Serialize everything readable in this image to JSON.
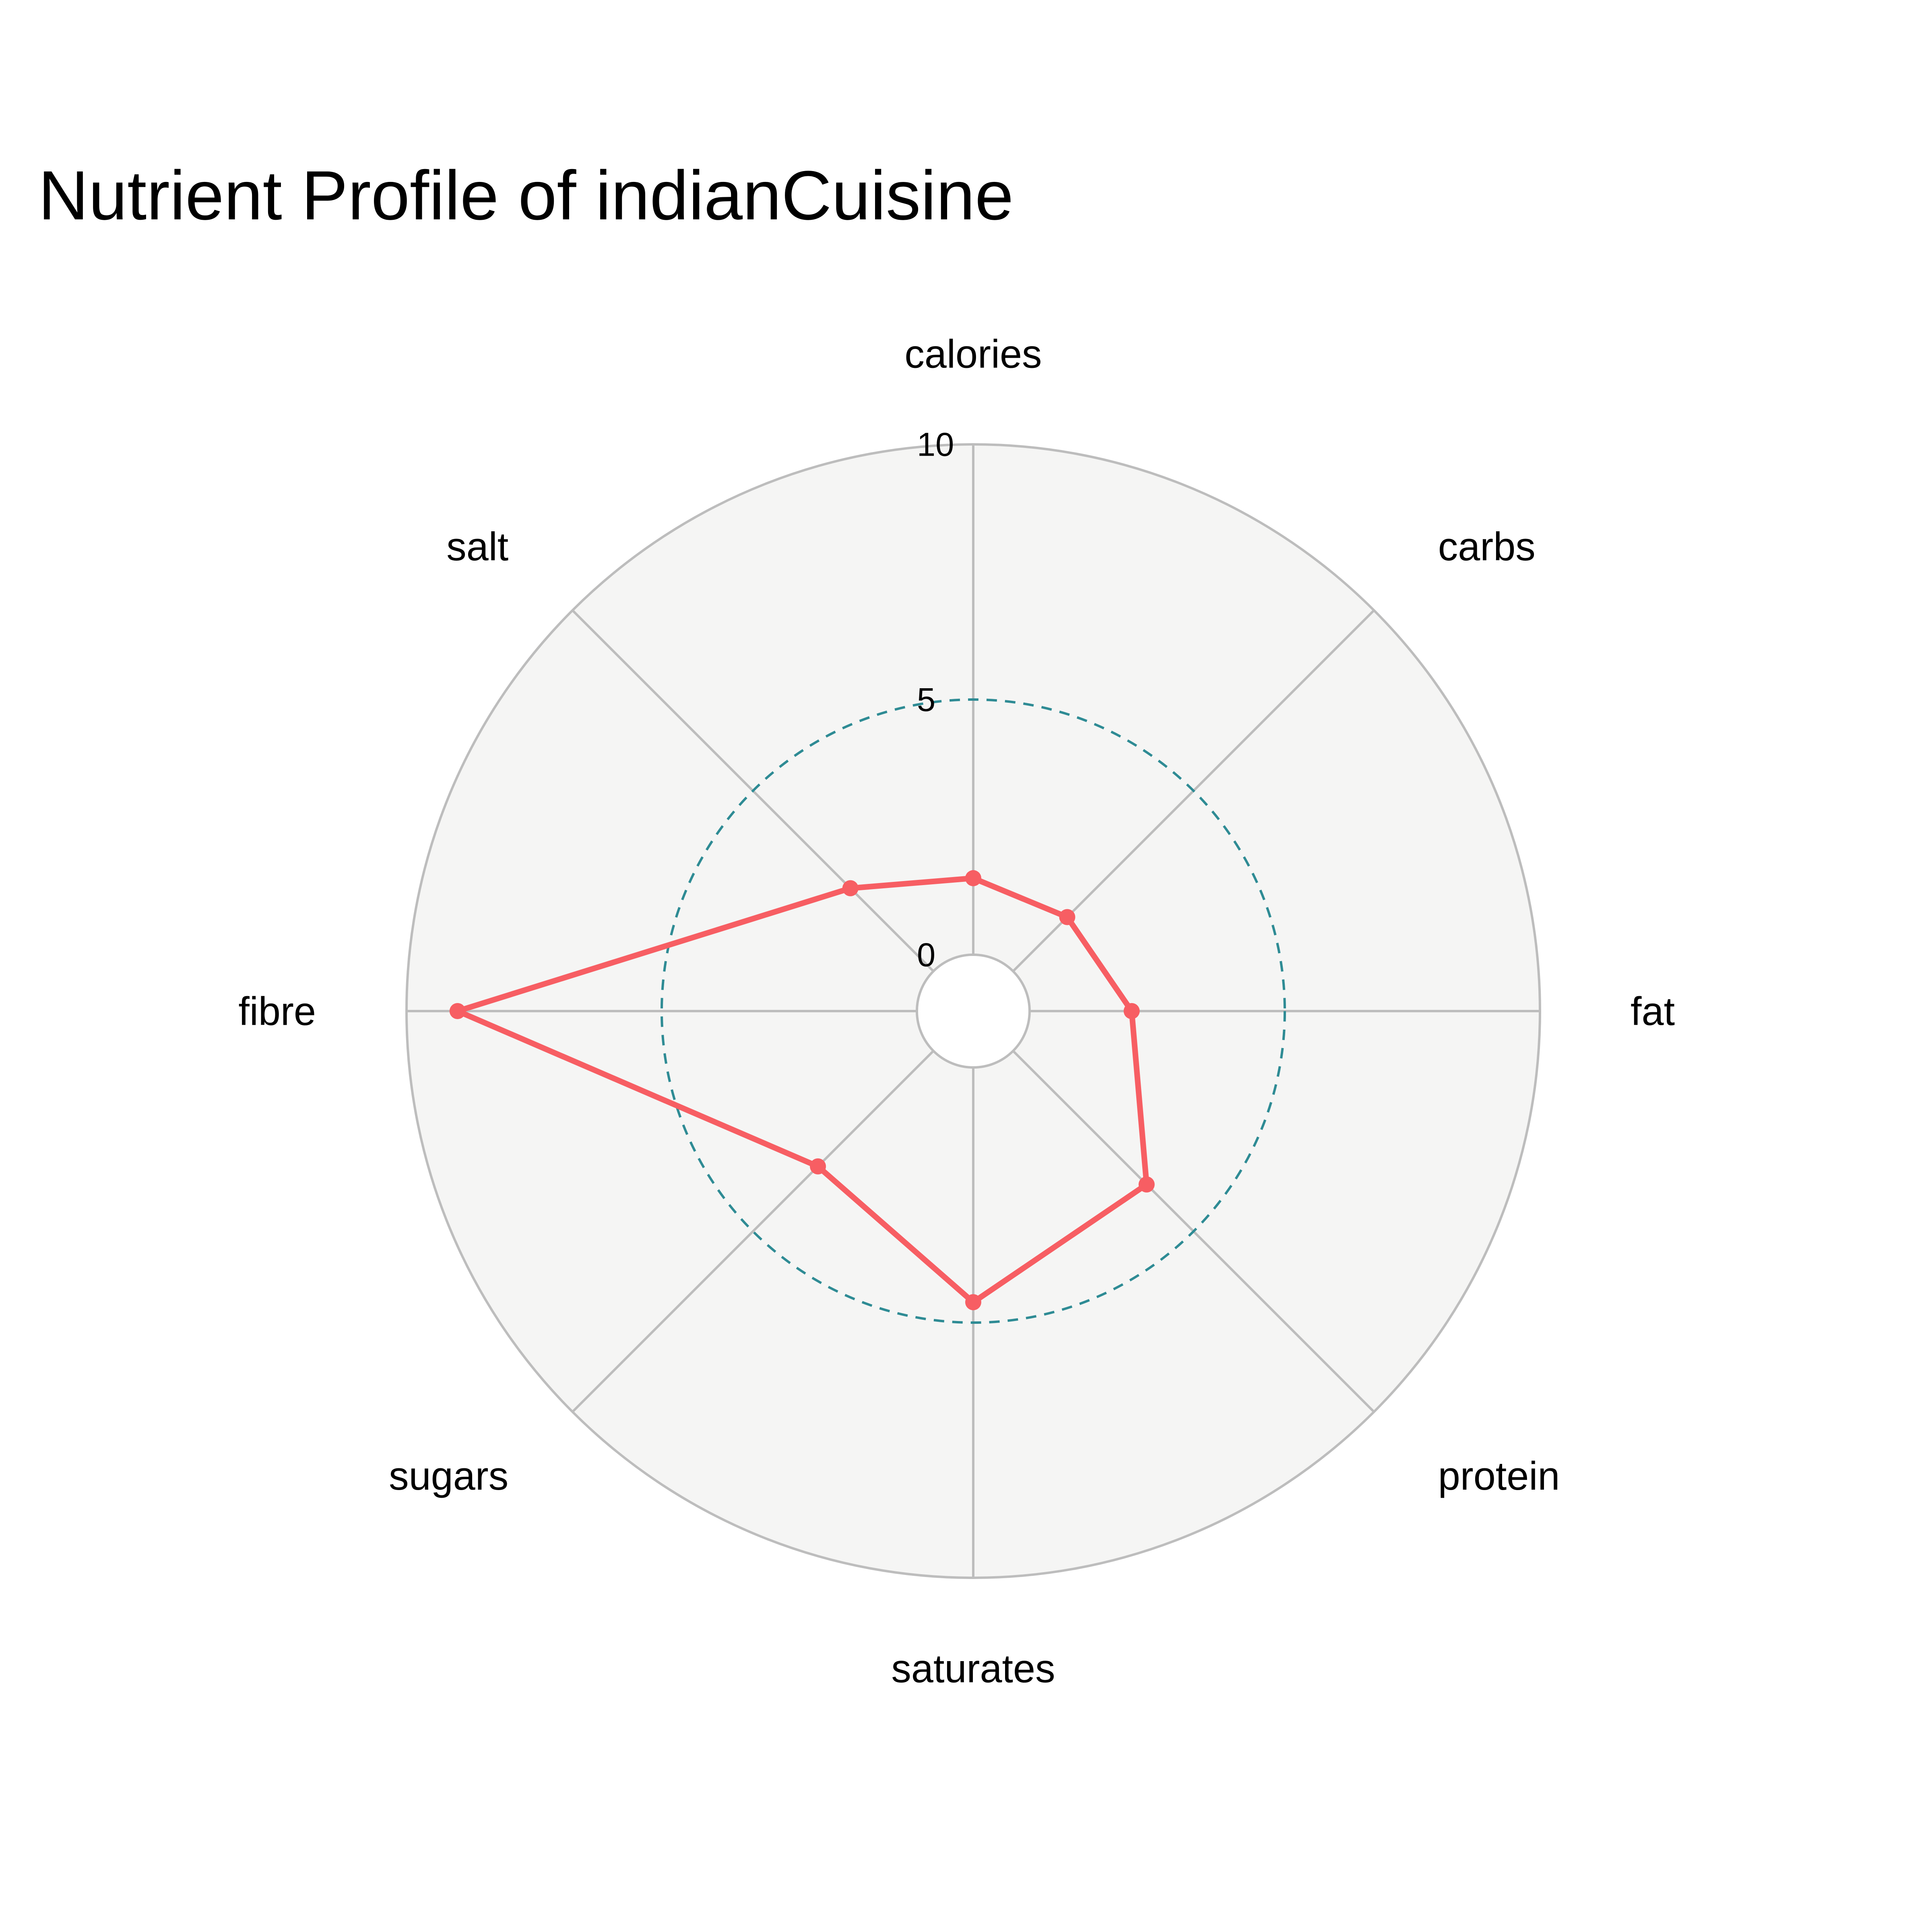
{
  "chart_data": {
    "type": "radar",
    "title": "Nutrient Profile of indianCuisine",
    "axes": [
      "calories",
      "carbs",
      "fat",
      "protein",
      "saturates",
      "sugars",
      "fibre",
      "salt"
    ],
    "radial_range": [
      0,
      10
    ],
    "radial_ticks": [
      0,
      5,
      10
    ],
    "series": [
      {
        "values": [
          1.5,
          1.5,
          2.0,
          3.7,
          4.6,
          3.2,
          9.0,
          2.3
        ],
        "color": "#F75E63",
        "markers": true
      }
    ],
    "reference_circle": {
      "value": 5,
      "style": "dashed",
      "color": "#2E8B94"
    },
    "background_color": "#F5F5F4",
    "grid_color": "#BDBDBD"
  }
}
